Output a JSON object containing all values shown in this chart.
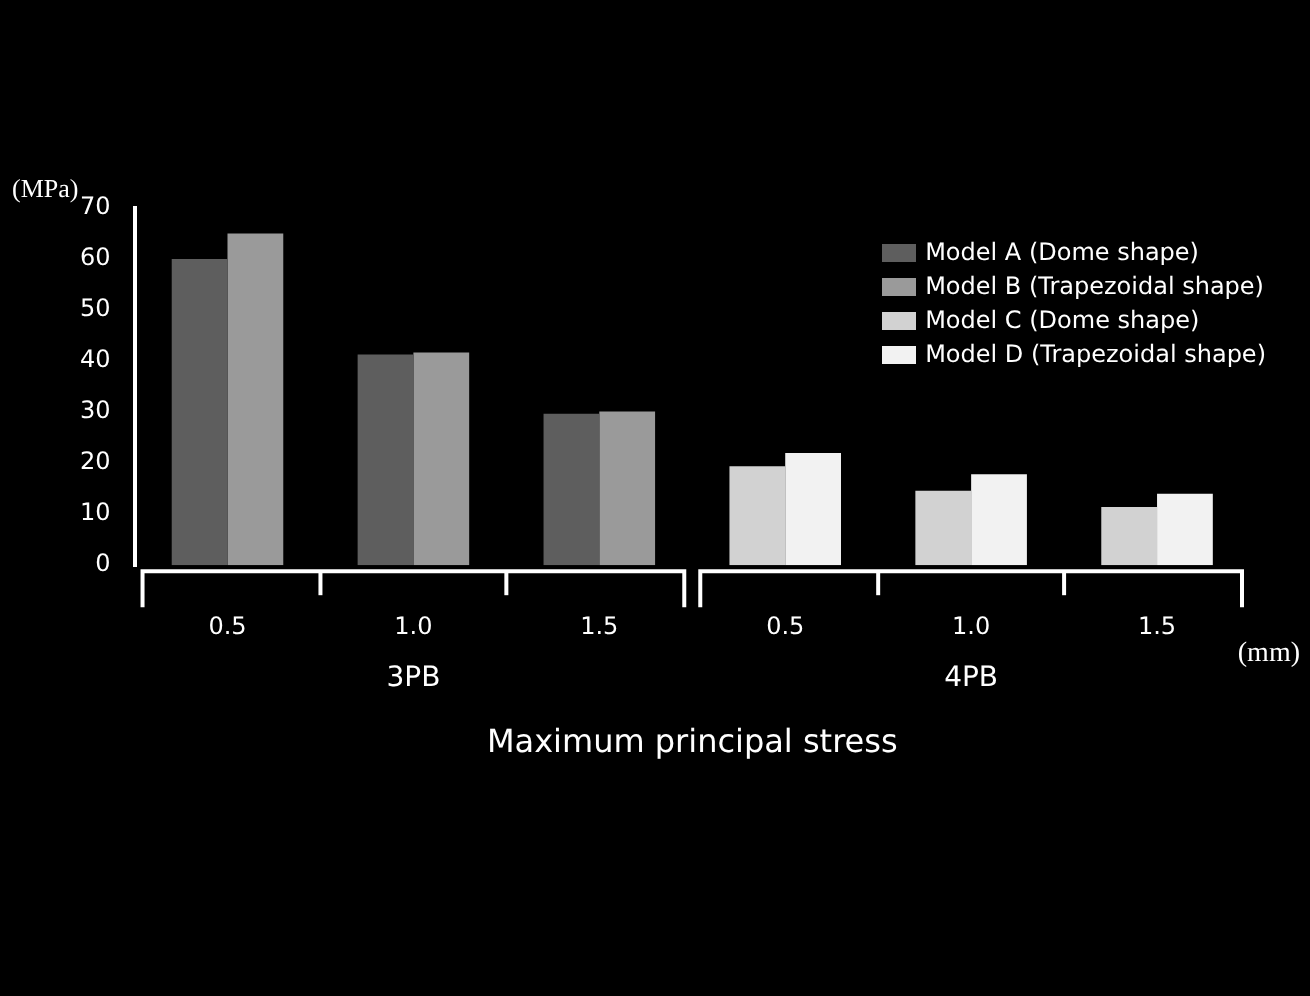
{
  "chart_data": {
    "type": "bar",
    "xlabel": "Maximum principal stress",
    "ylabel": "(MPa)",
    "categories": [
      "0.5",
      "1.0",
      "1.5",
      "0.5",
      "1.0",
      "1.5"
    ],
    "series": [
      {
        "name": "Model A (Dome shape)",
        "color": "#5e5e5e",
        "values": [
          60,
          41.3,
          29.7,
          null,
          null,
          null
        ]
      },
      {
        "name": "Model B (Trapezoidal shape)",
        "color": "#9a9a9a",
        "values": [
          65,
          41.7,
          30.1,
          null,
          null,
          null
        ]
      },
      {
        "name": "Model C (Dome shape)",
        "color": "#d2d2d2",
        "values": [
          null,
          null,
          null,
          19.4,
          14.6,
          11.4
        ]
      },
      {
        "name": "Model D (Trapezoidal shape)",
        "color": "#f2f2f2",
        "values": [
          null,
          null,
          null,
          22,
          17.8,
          14
        ]
      }
    ],
    "ylim": [
      0,
      70
    ],
    "yticks": [
      0,
      10,
      20,
      30,
      40,
      50,
      60,
      70
    ],
    "grid": false,
    "legend": "top right",
    "annotations": [
      "3PB",
      "4PB",
      "(mm)"
    ]
  }
}
